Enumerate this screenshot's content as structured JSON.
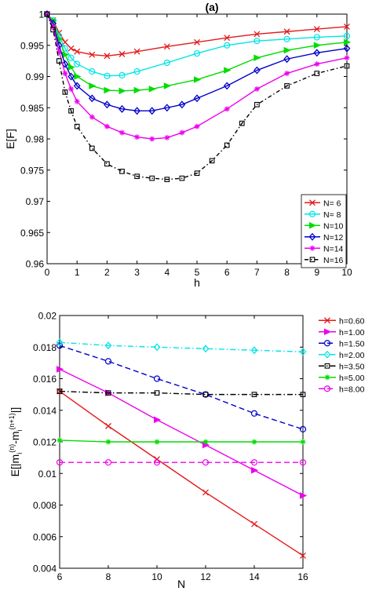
{
  "chart_data": [
    {
      "type": "line",
      "title": "(a)",
      "xlabel": "h",
      "ylabel": "E[F]",
      "xlim": [
        0,
        10
      ],
      "ylim": [
        0.96,
        1.0
      ],
      "x_ticks": [
        0,
        1,
        2,
        3,
        4,
        5,
        6,
        7,
        8,
        9,
        10
      ],
      "y_ticks": [
        0.96,
        0.965,
        0.97,
        0.975,
        0.98,
        0.985,
        0.99,
        0.995,
        1
      ],
      "x_tick_labels": [
        "0",
        "1",
        "2",
        "3",
        "4",
        "5",
        "6",
        "7",
        "8",
        "9",
        "10"
      ],
      "y_tick_labels": [
        "0.96",
        "0.965",
        "0.97",
        "0.975",
        "0.98",
        "0.985",
        "0.99",
        "0.995",
        "1"
      ],
      "legend_position": "bottom-right",
      "series": [
        {
          "name": "N= 6",
          "color": "#e41a1c",
          "marker": "x",
          "dash": "",
          "x": [
            0,
            0.2,
            0.4,
            0.6,
            0.8,
            1,
            1.5,
            2,
            2.5,
            3,
            4,
            5,
            6,
            7,
            8,
            9,
            10
          ],
          "y": [
            1,
            0.999,
            0.997,
            0.9955,
            0.9945,
            0.994,
            0.9935,
            0.9933,
            0.9936,
            0.994,
            0.9948,
            0.9955,
            0.9962,
            0.9968,
            0.9972,
            0.9976,
            0.998
          ]
        },
        {
          "name": "N= 8",
          "color": "#00e5e5",
          "marker": "o",
          "dash": "",
          "x": [
            0,
            0.2,
            0.4,
            0.6,
            0.8,
            1,
            1.5,
            2,
            2.5,
            3,
            4,
            5,
            6,
            7,
            8,
            9,
            10
          ],
          "y": [
            1,
            0.999,
            0.9965,
            0.9945,
            0.993,
            0.992,
            0.9908,
            0.9901,
            0.9902,
            0.9908,
            0.9922,
            0.9937,
            0.995,
            0.9957,
            0.996,
            0.9963,
            0.9965
          ]
        },
        {
          "name": "N=10",
          "color": "#00dd00",
          "marker": "triangle-right",
          "dash": "",
          "x": [
            0,
            0.2,
            0.4,
            0.6,
            0.8,
            1,
            1.5,
            2,
            2.5,
            3,
            3.5,
            4,
            5,
            6,
            7,
            8,
            9,
            10
          ],
          "y": [
            1,
            0.999,
            0.996,
            0.9935,
            0.9915,
            0.99,
            0.9885,
            0.9878,
            0.9877,
            0.9878,
            0.988,
            0.9885,
            0.9895,
            0.991,
            0.993,
            0.9942,
            0.995,
            0.9955
          ]
        },
        {
          "name": "N=12",
          "color": "#0000cc",
          "marker": "diamond",
          "dash": "",
          "x": [
            0,
            0.2,
            0.4,
            0.6,
            0.8,
            1,
            1.5,
            2,
            2.5,
            3,
            3.5,
            4,
            4.5,
            5,
            6,
            7,
            8,
            9,
            10
          ],
          "y": [
            1,
            0.9985,
            0.995,
            0.992,
            0.99,
            0.9885,
            0.9865,
            0.9855,
            0.9848,
            0.9845,
            0.9845,
            0.985,
            0.9855,
            0.9865,
            0.9885,
            0.991,
            0.9928,
            0.9938,
            0.9945
          ]
        },
        {
          "name": "N=14",
          "color": "#ee00ee",
          "marker": "asterisk",
          "dash": "",
          "x": [
            0,
            0.2,
            0.4,
            0.6,
            0.8,
            1,
            1.5,
            2,
            2.5,
            3,
            3.5,
            4,
            4.5,
            5,
            6,
            7,
            8,
            9,
            10
          ],
          "y": [
            1,
            0.998,
            0.994,
            0.9905,
            0.988,
            0.986,
            0.9835,
            0.982,
            0.981,
            0.9803,
            0.98,
            0.9802,
            0.981,
            0.982,
            0.9848,
            0.988,
            0.9905,
            0.992,
            0.993
          ]
        },
        {
          "name": "N=16",
          "color": "#000000",
          "marker": "square",
          "dash": "5,3,1.5,3",
          "x": [
            0,
            0.2,
            0.4,
            0.6,
            0.8,
            1,
            1.5,
            2,
            2.5,
            3,
            3.5,
            4,
            4.5,
            5,
            5.5,
            6,
            6.5,
            7,
            8,
            9,
            10
          ],
          "y": [
            1,
            0.9975,
            0.9925,
            0.9875,
            0.9845,
            0.982,
            0.9785,
            0.976,
            0.9748,
            0.974,
            0.9737,
            0.9735,
            0.9737,
            0.9745,
            0.9765,
            0.979,
            0.9825,
            0.9855,
            0.9885,
            0.9905,
            0.9917
          ]
        }
      ]
    },
    {
      "type": "line",
      "title": "",
      "xlabel": "N",
      "ylabel": "E[|m_i^(n) - m_i^(n+1)|]",
      "ylabel_parts": {
        "prefix": "E[|m",
        "sub1": "i",
        "sup1": "(n)",
        "middle": "-m",
        "sub2": "i",
        "sup2": "(n+1)",
        "suffix": "|]"
      },
      "xlim": [
        6,
        16
      ],
      "ylim": [
        0.004,
        0.02
      ],
      "x_ticks": [
        6,
        8,
        10,
        12,
        14,
        16
      ],
      "y_ticks": [
        0.004,
        0.006,
        0.008,
        0.01,
        0.012,
        0.014,
        0.016,
        0.018,
        0.02
      ],
      "x_tick_labels": [
        "6",
        "8",
        "10",
        "12",
        "14",
        "16"
      ],
      "y_tick_labels": [
        "0.004",
        "0.006",
        "0.008",
        "0.01",
        "0.012",
        "0.014",
        "0.016",
        "0.018",
        "0.02"
      ],
      "legend_position": "outside-right",
      "series": [
        {
          "name": "h=0.60",
          "color": "#e41a1c",
          "marker": "x",
          "dash": "",
          "x": [
            6,
            8,
            10,
            12,
            14,
            16
          ],
          "y": [
            0.0152,
            0.013,
            0.0109,
            0.0088,
            0.0068,
            0.0048
          ]
        },
        {
          "name": "h=1.00",
          "color": "#ee00ee",
          "marker": "triangle-right",
          "dash": "",
          "x": [
            6,
            8,
            10,
            12,
            14,
            16
          ],
          "y": [
            0.0166,
            0.0151,
            0.0134,
            0.0118,
            0.0102,
            0.0086
          ]
        },
        {
          "name": "h=1.50",
          "color": "#0000cc",
          "marker": "o",
          "dash": "7,4",
          "x": [
            6,
            8,
            10,
            12,
            14,
            16
          ],
          "y": [
            0.0181,
            0.0171,
            0.016,
            0.015,
            0.0138,
            0.0128
          ]
        },
        {
          "name": "h=2.00",
          "color": "#00e5e5",
          "marker": "diamond",
          "dash": "7,3,1.5,3",
          "x": [
            6,
            8,
            10,
            12,
            14,
            16
          ],
          "y": [
            0.0183,
            0.0181,
            0.018,
            0.0179,
            0.0178,
            0.0177
          ]
        },
        {
          "name": "h=3.50",
          "color": "#000000",
          "marker": "square",
          "dash": "7,3,1.5,3",
          "x": [
            6,
            8,
            10,
            12,
            14,
            16
          ],
          "y": [
            0.0152,
            0.0151,
            0.0151,
            0.015,
            0.015,
            0.015
          ]
        },
        {
          "name": "h=5.00",
          "color": "#00dd00",
          "marker": "asterisk",
          "dash": "",
          "x": [
            6,
            8,
            10,
            12,
            14,
            16
          ],
          "y": [
            0.0121,
            0.012,
            0.012,
            0.012,
            0.012,
            0.012
          ]
        },
        {
          "name": "h=8.00",
          "color": "#ee00ee",
          "marker": "o",
          "dash": "7,4",
          "x": [
            6,
            8,
            10,
            12,
            14,
            16
          ],
          "y": [
            0.0107,
            0.0107,
            0.0107,
            0.0107,
            0.0107,
            0.0107
          ]
        }
      ]
    }
  ]
}
